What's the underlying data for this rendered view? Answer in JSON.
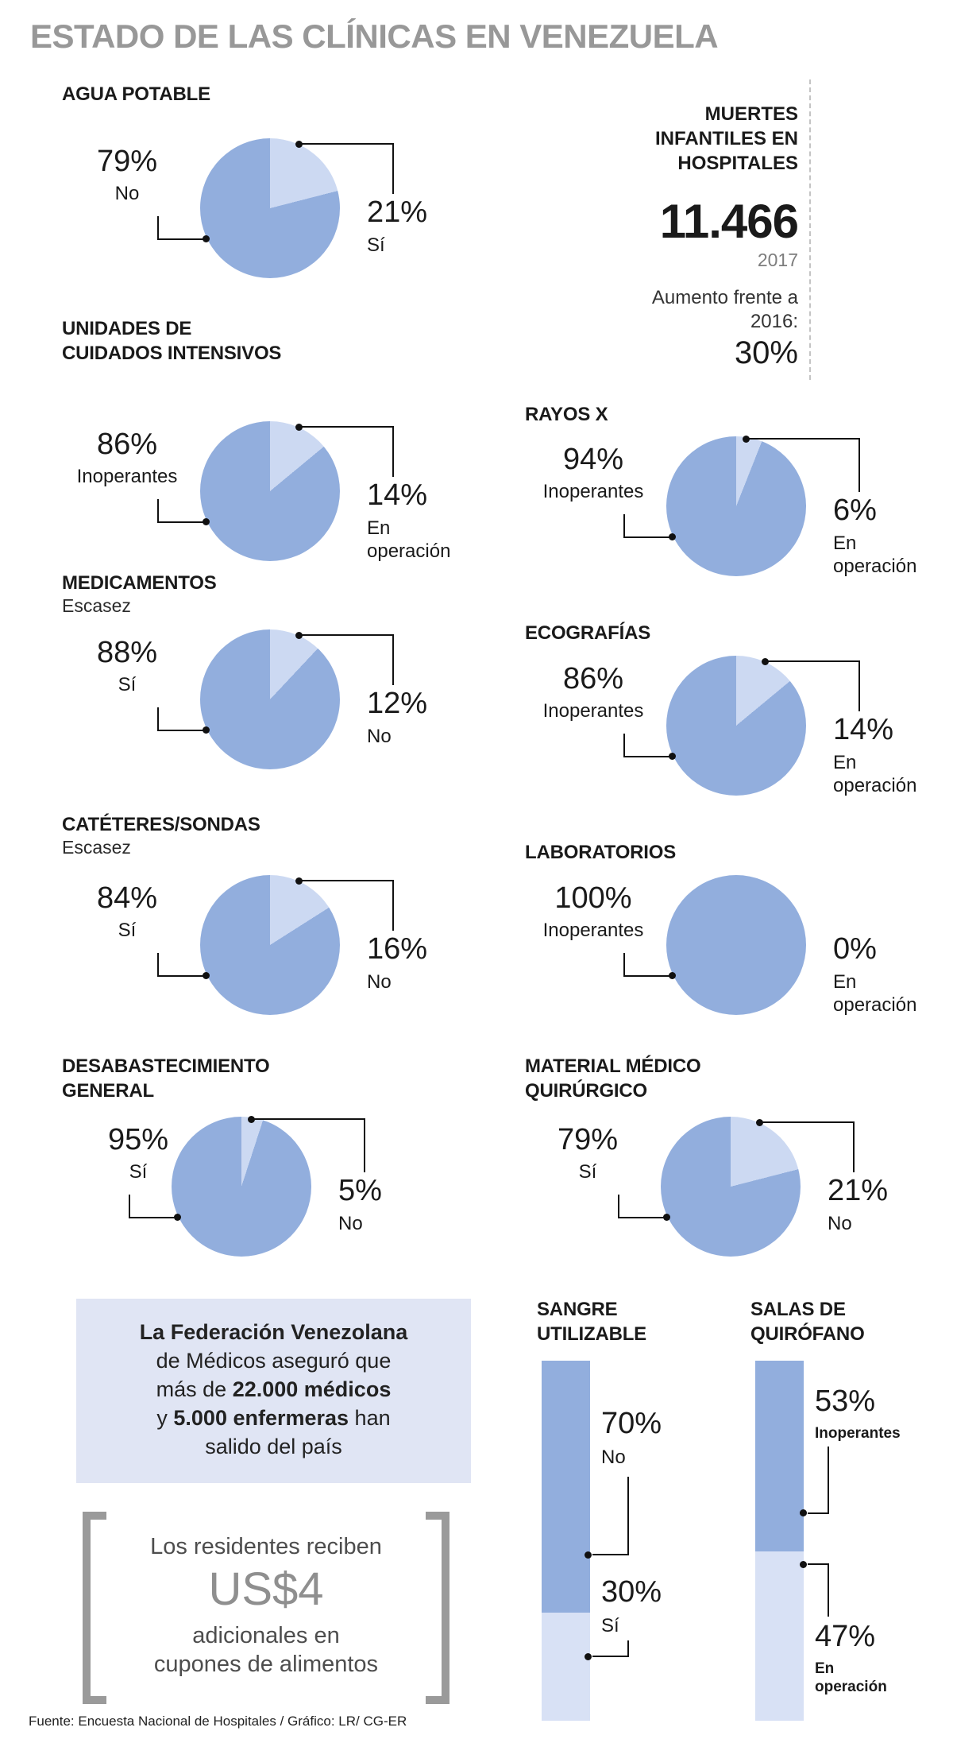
{
  "title": "ESTADO DE LAS CLÍNICAS EN VENEZUELA",
  "source": "Fuente: Encuesta Nacional de Hospitales / Gráfico: LR/ CG-ER",
  "colors": {
    "slice_major": "#92aedd",
    "slice_minor": "#ccd9f2",
    "bar_major": "#92aedd",
    "bar_minor": "#d8e1f5",
    "infobox_bg": "#e0e5f4",
    "title_gray": "#989898"
  },
  "deaths": {
    "title": "MUERTES\nINFANTILES EN\nHOSPITALES",
    "value": "11.466",
    "year": "2017",
    "increase_label": "Aumento frente a\n2016:",
    "increase_value": "30%"
  },
  "pies": [
    {
      "header": "AGUA POTABLE",
      "major_pct": 79,
      "minor_pct": 21,
      "major_label": "79%",
      "major_sub": "No",
      "minor_label": "21%",
      "minor_sub": "Sí"
    },
    {
      "header": "UNIDADES DE\nCUIDADOS INTENSIVOS",
      "major_pct": 86,
      "minor_pct": 14,
      "major_label": "86%",
      "major_sub": "Inoperantes",
      "minor_label": "14%",
      "minor_sub": "En\noperación"
    },
    {
      "header": "MEDICAMENTOS",
      "subtitle": "Escasez",
      "major_pct": 88,
      "minor_pct": 12,
      "major_label": "88%",
      "major_sub": "Sí",
      "minor_label": "12%",
      "minor_sub": "No"
    },
    {
      "header": "CATÉTERES/SONDAS",
      "subtitle": "Escasez",
      "major_pct": 84,
      "minor_pct": 16,
      "major_label": "84%",
      "major_sub": "Sí",
      "minor_label": "16%",
      "minor_sub": "No"
    },
    {
      "header": "DESABASTECIMIENTO\nGENERAL",
      "major_pct": 95,
      "minor_pct": 5,
      "major_label": "95%",
      "major_sub": "Sí",
      "minor_label": "5%",
      "minor_sub": "No"
    },
    {
      "header": "RAYOS X",
      "major_pct": 94,
      "minor_pct": 6,
      "major_label": "94%",
      "major_sub": "Inoperantes",
      "minor_label": "6%",
      "minor_sub": "En\noperación"
    },
    {
      "header": "ECOGRAFÍAS",
      "major_pct": 86,
      "minor_pct": 14,
      "major_label": "86%",
      "major_sub": "Inoperantes",
      "minor_label": "14%",
      "minor_sub": "En\noperación"
    },
    {
      "header": "LABORATORIOS",
      "major_pct": 100,
      "minor_pct": 0,
      "major_label": "100%",
      "major_sub": "Inoperantes",
      "minor_label": "0%",
      "minor_sub": "En\noperación"
    },
    {
      "header": "MATERIAL MÉDICO\nQUIRÚRGICO",
      "major_pct": 79,
      "minor_pct": 21,
      "major_label": "79%",
      "major_sub": "Sí",
      "minor_label": "21%",
      "minor_sub": "No"
    }
  ],
  "bars": [
    {
      "header": "SANGRE\nUTILIZABLE",
      "top_pct": 70,
      "bottom_pct": 30,
      "top_label": "70%",
      "top_sub": "No",
      "bottom_label": "30%",
      "bottom_sub": "Sí"
    },
    {
      "header": "SALAS DE\nQUIRÓFANO",
      "top_pct": 53,
      "bottom_pct": 47,
      "top_label": "53%",
      "top_sub": "Inoperantes",
      "bottom_label": "47%",
      "bottom_sub": "En\noperación"
    }
  ],
  "infobox": {
    "l1": "La Federación Venezolana",
    "l2": "de Médicos aseguró que",
    "l3a": "más de ",
    "l3b": "22.000 médicos",
    "l4a": "y ",
    "l4b": "5.000 enfermeras",
    "l4c": " han",
    "l5": "salido del país"
  },
  "residents": {
    "line1": "Los residentes reciben",
    "amount": "US$4",
    "line2": "adicionales en",
    "line3": "cupones de alimentos"
  },
  "chart_data": [
    {
      "type": "pie",
      "title": "AGUA POTABLE",
      "labels": [
        "No",
        "Sí"
      ],
      "values": [
        79,
        21
      ]
    },
    {
      "type": "pie",
      "title": "UNIDADES DE CUIDADOS INTENSIVOS",
      "labels": [
        "Inoperantes",
        "En operación"
      ],
      "values": [
        86,
        14
      ]
    },
    {
      "type": "pie",
      "title": "MEDICAMENTOS (Escasez)",
      "labels": [
        "Sí",
        "No"
      ],
      "values": [
        88,
        12
      ]
    },
    {
      "type": "pie",
      "title": "CATÉTERES/SONDAS (Escasez)",
      "labels": [
        "Sí",
        "No"
      ],
      "values": [
        84,
        16
      ]
    },
    {
      "type": "pie",
      "title": "DESABASTECIMIENTO GENERAL",
      "labels": [
        "Sí",
        "No"
      ],
      "values": [
        95,
        5
      ]
    },
    {
      "type": "pie",
      "title": "RAYOS X",
      "labels": [
        "Inoperantes",
        "En operación"
      ],
      "values": [
        94,
        6
      ]
    },
    {
      "type": "pie",
      "title": "ECOGRAFÍAS",
      "labels": [
        "Inoperantes",
        "En operación"
      ],
      "values": [
        86,
        14
      ]
    },
    {
      "type": "pie",
      "title": "LABORATORIOS",
      "labels": [
        "Inoperantes",
        "En operación"
      ],
      "values": [
        100,
        0
      ]
    },
    {
      "type": "pie",
      "title": "MATERIAL MÉDICO QUIRÚRGICO",
      "labels": [
        "Sí",
        "No"
      ],
      "values": [
        79,
        21
      ]
    },
    {
      "type": "bar",
      "title": "SANGRE UTILIZABLE",
      "labels": [
        "No",
        "Sí"
      ],
      "values": [
        70,
        30
      ]
    },
    {
      "type": "bar",
      "title": "SALAS DE QUIRÓFANO",
      "labels": [
        "Inoperantes",
        "En operación"
      ],
      "values": [
        53,
        47
      ]
    },
    {
      "type": "stat",
      "title": "MUERTES INFANTILES EN HOSPITALES",
      "value": 11466,
      "year": 2017,
      "increase_vs_2016_pct": 30
    }
  ]
}
